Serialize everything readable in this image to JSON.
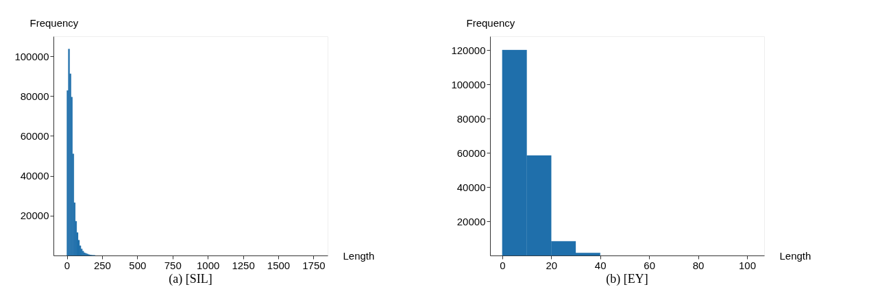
{
  "chart_data": [
    {
      "type": "histogram",
      "title": "(a)  [SIL]",
      "xlabel": "Length",
      "ylabel": "Frequency",
      "color": "#1f6fab",
      "bins": [
        0,
        10,
        20,
        30,
        40,
        50,
        60,
        70,
        80,
        90,
        100,
        110,
        120,
        130,
        140,
        150,
        160,
        170,
        180,
        190,
        200
      ],
      "values": [
        82800,
        103600,
        91200,
        79500,
        51000,
        26500,
        17200,
        11500,
        7700,
        4900,
        3300,
        2200,
        1400,
        1100,
        800,
        500,
        300,
        200,
        100,
        100
      ],
      "xlim": [
        -95,
        1850
      ],
      "ylim": [
        0,
        110000
      ],
      "xticks": [
        0,
        250,
        500,
        750,
        1000,
        1250,
        1500,
        1750
      ],
      "yticks": [
        20000,
        40000,
        60000,
        80000,
        100000
      ]
    },
    {
      "type": "histogram",
      "title": "(b)  [EY]",
      "xlabel": "Length",
      "ylabel": "Frequency",
      "color": "#1f6fab",
      "bins": [
        0,
        10,
        20,
        30,
        40
      ],
      "values": [
        120000,
        58400,
        8300,
        1500
      ],
      "xlim": [
        -5,
        107
      ],
      "ylim": [
        0,
        128000
      ],
      "xticks": [
        0,
        20,
        40,
        60,
        80,
        100
      ],
      "yticks": [
        20000,
        40000,
        60000,
        80000,
        100000,
        120000
      ]
    }
  ]
}
